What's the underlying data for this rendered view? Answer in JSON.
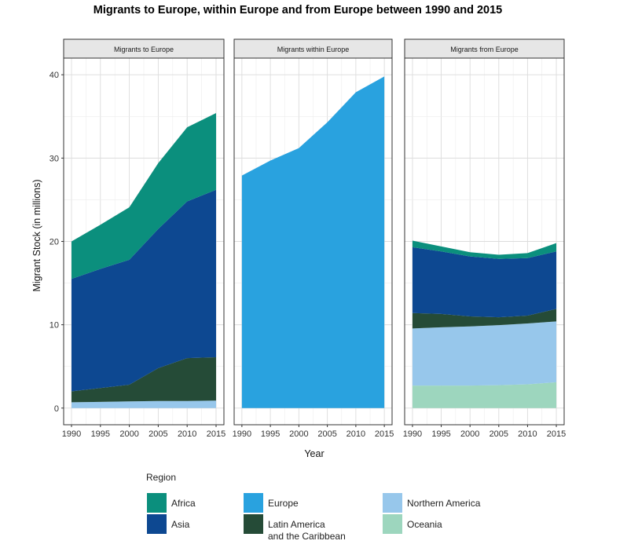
{
  "chart_data": {
    "type": "area",
    "title": "Migrants to Europe, within Europe and from Europe between 1990 and 2015",
    "xlabel": "Year",
    "ylabel": "Migrant Stock (in millions)",
    "x": [
      1990,
      1995,
      2000,
      2005,
      2010,
      2015
    ],
    "x_ticks": [
      "1990",
      "1995",
      "2000",
      "2005",
      "2010",
      "2015"
    ],
    "y_ticks": [
      "0",
      "10",
      "20",
      "30",
      "40"
    ],
    "ylim": [
      -2,
      42
    ],
    "stacked": true,
    "grid": true,
    "legend": {
      "title": "Region",
      "placement": "bottom",
      "entries": [
        {
          "name": "Africa",
          "color": "#0b8f7d"
        },
        {
          "name": "Asia",
          "color": "#0d4891"
        },
        {
          "name": "Europe",
          "color": "#29a2df"
        },
        {
          "name": "Latin America and the Caribbean",
          "lines": [
            "Latin America",
            "and the Caribbean"
          ],
          "color": "#254b37"
        },
        {
          "name": "Northern America",
          "color": "#97c7eb"
        },
        {
          "name": "Oceania",
          "color": "#9dd6be"
        }
      ]
    },
    "stack_order": [
      "Oceania",
      "Northern America",
      "Latin America and the Caribbean",
      "Asia",
      "Africa",
      "Europe"
    ],
    "panels": [
      {
        "title": "Migrants to Europe",
        "series": [
          {
            "name": "Northern America",
            "values": [
              0.7,
              0.75,
              0.8,
              0.85,
              0.85,
              0.9
            ]
          },
          {
            "name": "Latin America and the Caribbean",
            "values": [
              1.3,
              1.65,
              2.0,
              3.95,
              5.15,
              5.2
            ]
          },
          {
            "name": "Asia",
            "values": [
              13.5,
              14.3,
              15.0,
              16.7,
              18.8,
              20.1
            ]
          },
          {
            "name": "Africa",
            "values": [
              4.5,
              5.3,
              6.3,
              7.9,
              8.9,
              9.2
            ]
          }
        ]
      },
      {
        "title": "Migrants within Europe",
        "series": [
          {
            "name": "Europe",
            "values": [
              27.9,
              29.7,
              31.2,
              34.3,
              37.9,
              39.8
            ]
          }
        ]
      },
      {
        "title": "Migrants from Europe",
        "series": [
          {
            "name": "Oceania",
            "values": [
              2.7,
              2.7,
              2.7,
              2.75,
              2.85,
              3.1
            ]
          },
          {
            "name": "Northern America",
            "values": [
              6.85,
              7.0,
              7.1,
              7.2,
              7.3,
              7.3
            ]
          },
          {
            "name": "Latin America and the Caribbean",
            "values": [
              1.85,
              1.6,
              1.2,
              0.95,
              0.95,
              1.5
            ]
          },
          {
            "name": "Asia",
            "values": [
              7.9,
              7.5,
              7.2,
              7.0,
              6.9,
              6.9
            ]
          },
          {
            "name": "Africa",
            "values": [
              0.8,
              0.6,
              0.5,
              0.5,
              0.6,
              1.0
            ]
          }
        ]
      }
    ]
  }
}
